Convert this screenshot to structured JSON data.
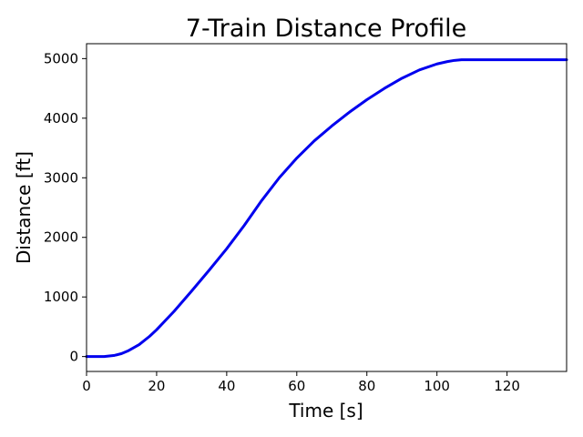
{
  "chart_data": {
    "type": "line",
    "title": "7-Train Distance Profile",
    "xlabel": "Time [s]",
    "ylabel": "Distance [ft]",
    "xlim": [
      0,
      137
    ],
    "ylim": [
      -250,
      5250
    ],
    "xticks": [
      0,
      20,
      40,
      60,
      80,
      100,
      120
    ],
    "yticks": [
      0,
      1000,
      2000,
      3000,
      4000,
      5000
    ],
    "grid": false,
    "series": [
      {
        "color": "#0000ee",
        "x": [
          0,
          5,
          8,
          10,
          12,
          15,
          18,
          20,
          25,
          30,
          35,
          40,
          45,
          50,
          55,
          60,
          65,
          70,
          75,
          80,
          85,
          90,
          95,
          100,
          103,
          105,
          107,
          110,
          120,
          130,
          137
        ],
        "y": [
          0,
          0,
          20,
          50,
          100,
          200,
          340,
          450,
          760,
          1100,
          1450,
          1810,
          2200,
          2620,
          3000,
          3330,
          3620,
          3870,
          4100,
          4310,
          4500,
          4670,
          4810,
          4910,
          4950,
          4970,
          4980,
          4980,
          4980,
          4980,
          4980
        ]
      }
    ]
  }
}
